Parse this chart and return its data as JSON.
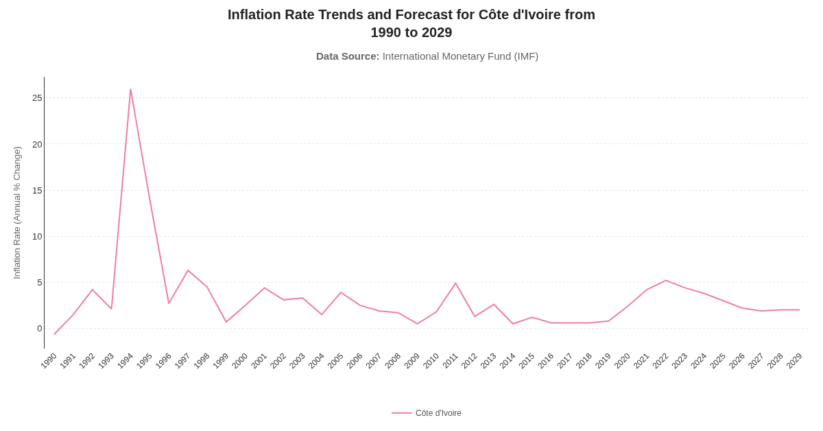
{
  "chart_data": {
    "type": "line",
    "title": "Inflation Rate Trends and Forecast for Côte d'Ivoire from 1990 to 2029",
    "subtitle": "Data Source: International Monetary Fund (IMF)",
    "ylabel": "Inflation Rate (Annual % Change)",
    "categories": [
      "1990",
      "1991",
      "1992",
      "1993",
      "1994",
      "1995",
      "1996",
      "1997",
      "1998",
      "1999",
      "2000",
      "2001",
      "2002",
      "2003",
      "2004",
      "2005",
      "2006",
      "2007",
      "2008",
      "2009",
      "2010",
      "2011",
      "2012",
      "2013",
      "2014",
      "2015",
      "2016",
      "2017",
      "2018",
      "2019",
      "2020",
      "2021",
      "2022",
      "2023",
      "2024",
      "2025",
      "2026",
      "2027",
      "2028",
      "2029"
    ],
    "series": [
      {
        "name": "Côte d'Ivoire",
        "color": "#f07ca8",
        "values": [
          -0.65,
          1.5,
          4.2,
          2.1,
          26.0,
          14.0,
          2.7,
          6.3,
          4.5,
          0.7,
          2.5,
          4.4,
          3.1,
          3.3,
          1.5,
          3.9,
          2.5,
          1.9,
          1.7,
          0.5,
          1.8,
          4.9,
          1.3,
          2.6,
          0.5,
          1.2,
          0.6,
          0.6,
          0.6,
          0.8,
          2.4,
          4.2,
          5.2,
          4.4,
          3.8,
          3.0,
          2.2,
          1.9,
          2.0,
          2.0
        ]
      }
    ],
    "ylim": [
      -2.2,
      27.3
    ],
    "yticks": [
      0,
      5,
      10,
      15,
      20,
      25
    ],
    "grid": "y",
    "legend": "bottom",
    "marker": "none",
    "line_style": "solid"
  }
}
